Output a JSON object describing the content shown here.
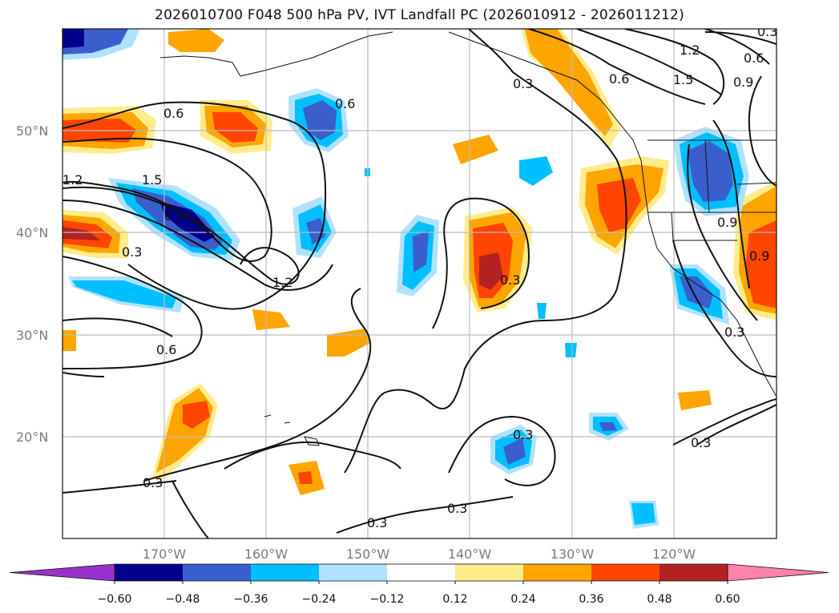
{
  "title": "2026010700 F048 500 hPa PV, IVT Landfall PC (2026010912 - 2026011212)",
  "lat_labels": [
    "50°N",
    "40°N",
    "30°N",
    "20°N"
  ],
  "lon_labels": [
    "170°W",
    "160°W",
    "150°W",
    "140°W",
    "130°W",
    "120°W"
  ],
  "contour_labels": [
    "0.6",
    "0.6",
    "1.2",
    "1.5",
    "0.9",
    "1.2",
    "0.3",
    "0.6",
    "0.3",
    "0.3",
    "0.3",
    "0.3",
    "0.3",
    "1.2",
    "0.6",
    "0.9",
    "1.5",
    "0.6",
    "0.3",
    "0.9",
    "0.9",
    "0.3",
    "0.3",
    "0.3"
  ],
  "colorbar": {
    "tick_labels": [
      "−0.60",
      "−0.48",
      "−0.36",
      "−0.24",
      "−0.12",
      "0.12",
      "0.24",
      "0.36",
      "0.48",
      "0.60"
    ],
    "colors": [
      "#9932cc",
      "#00008b",
      "#3a5fcd",
      "#00bfff",
      "#b0e2ff",
      "#ffffff",
      "#ffec8b",
      "#ffa500",
      "#ff4500",
      "#b22222",
      "#ff82ab"
    ]
  }
}
